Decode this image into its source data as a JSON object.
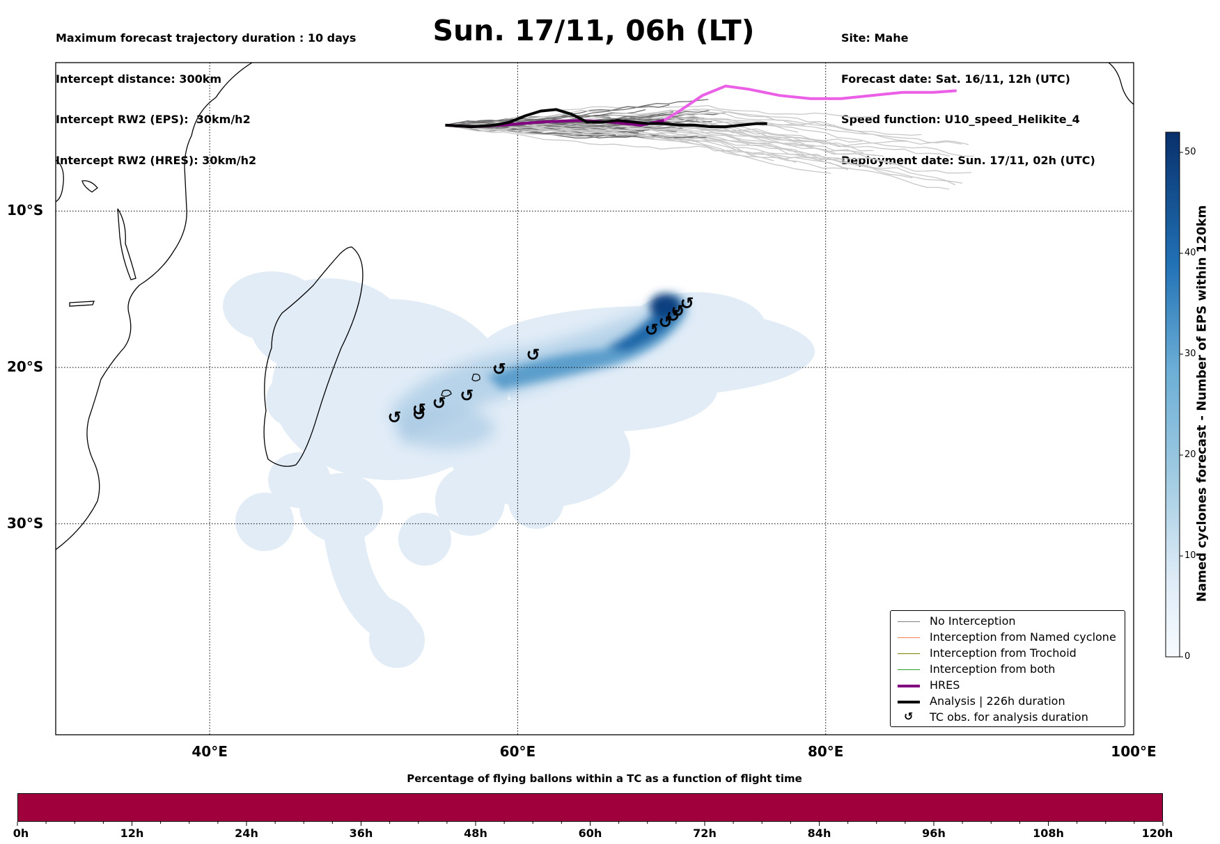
{
  "header_left": [
    "Maximum forecast trajectory duration : 10 days",
    "Intercept distance: 300km",
    "Intercept RW2 (EPS):  30km/h2",
    "Intercept RW2 (HRES): 30km/h2"
  ],
  "title": "Sun. 17/11, 06h (LT)",
  "header_right": [
    "Site: Mahe",
    "Forecast date: Sat. 16/11, 12h (UTC)",
    "Speed function: U10_speed_Helikite_4",
    "Deployment date: Sun. 17/11, 02h (UTC)"
  ],
  "map": {
    "lon_range": [
      30,
      100
    ],
    "lat_range": [
      -0.5,
      -43.5
    ],
    "lat_ticks": [
      {
        "value": -10,
        "label": "10°S"
      },
      {
        "value": -20,
        "label": "20°S"
      },
      {
        "value": -30,
        "label": "30°S"
      }
    ],
    "lon_ticks": [
      {
        "value": 40,
        "label": "40°E"
      },
      {
        "value": 60,
        "label": "60°E"
      },
      {
        "value": 80,
        "label": "80°E"
      },
      {
        "value": 100,
        "label": "100°E"
      }
    ],
    "gridlines": "dotted",
    "tc_obs": [
      [
        52.0,
        -23.2
      ],
      [
        53.6,
        -23.0
      ],
      [
        53.6,
        -22.7
      ],
      [
        54.9,
        -22.3
      ],
      [
        56.7,
        -21.8
      ],
      [
        58.8,
        -20.1
      ],
      [
        61.0,
        -19.2
      ],
      [
        68.7,
        -17.6
      ],
      [
        69.6,
        -17.1
      ],
      [
        70.1,
        -16.7
      ],
      [
        70.4,
        -16.4
      ],
      [
        71.0,
        -15.9
      ]
    ],
    "hres_track": [
      [
        55.3,
        -4.5
      ],
      [
        57.0,
        -4.6
      ],
      [
        59.0,
        -4.5
      ],
      [
        61.5,
        -4.3
      ],
      [
        64.0,
        -4.2
      ],
      [
        66.0,
        -4.3
      ],
      [
        68.0,
        -4.5
      ],
      [
        69.5,
        -4.2
      ],
      [
        70.5,
        -3.6
      ],
      [
        72.0,
        -2.6
      ],
      [
        73.5,
        -2.0
      ],
      [
        75.0,
        -2.2
      ],
      [
        77.0,
        -2.6
      ],
      [
        79.0,
        -2.8
      ],
      [
        81.0,
        -2.8
      ],
      [
        83.0,
        -2.6
      ],
      [
        85.0,
        -2.4
      ],
      [
        87.0,
        -2.4
      ],
      [
        88.5,
        -2.3
      ]
    ],
    "analysis_track": [
      [
        55.3,
        -4.5
      ],
      [
        57.0,
        -4.6
      ],
      [
        58.5,
        -4.5
      ],
      [
        59.5,
        -4.3
      ],
      [
        60.5,
        -3.9
      ],
      [
        61.5,
        -3.6
      ],
      [
        62.5,
        -3.5
      ],
      [
        63.5,
        -3.8
      ],
      [
        64.5,
        -4.3
      ],
      [
        65.5,
        -4.3
      ],
      [
        66.5,
        -4.2
      ],
      [
        67.5,
        -4.3
      ],
      [
        68.5,
        -4.4
      ],
      [
        69.5,
        -4.4
      ],
      [
        70.5,
        -4.5
      ],
      [
        71.5,
        -4.5
      ],
      [
        72.5,
        -4.6
      ],
      [
        73.5,
        -4.6
      ],
      [
        74.5,
        -4.5
      ],
      [
        75.5,
        -4.4
      ],
      [
        76.2,
        -4.4
      ]
    ]
  },
  "legend": [
    {
      "label": "No Interception",
      "color": "#808080",
      "style": "line-thin"
    },
    {
      "label": "Interception from Named cyclone",
      "color": "#ff7f50",
      "style": "line-thin"
    },
    {
      "label": "Interception from Trochoid",
      "color": "#808000",
      "style": "line-thin"
    },
    {
      "label": "Interception from both",
      "color": "#2ca02c",
      "style": "line-thin"
    },
    {
      "label": "HRES",
      "color": "#800080",
      "style": "line-thick"
    },
    {
      "label": "Analysis | 226h duration",
      "color": "#000000",
      "style": "line-thick"
    },
    {
      "label": "TC obs. for analysis duration",
      "color": "#000000",
      "style": "symbol",
      "symbol": "↺"
    }
  ],
  "colorbar": {
    "label": "Named cyclones forecast - Number of EPS within 120km",
    "min": 0,
    "max": 52,
    "ticks": [
      0,
      10,
      20,
      30,
      40,
      50
    ],
    "colormap": "Blues"
  },
  "flight_bar": {
    "title": "Percentage of flying ballons within a TC as a function of flight time",
    "color": "#a0003c",
    "ticks": [
      "0h",
      "12h",
      "24h",
      "36h",
      "48h",
      "60h",
      "72h",
      "84h",
      "96h",
      "108h",
      "120h"
    ]
  }
}
